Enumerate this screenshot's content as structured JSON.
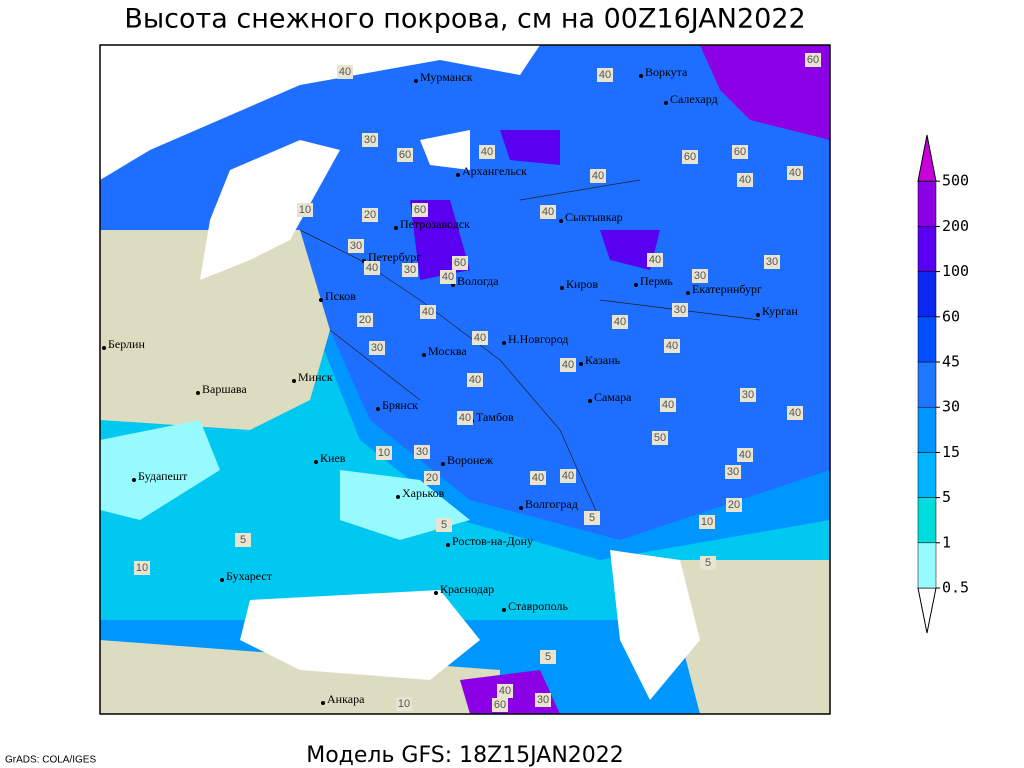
{
  "title": "Высота снежного покрова, см на 00Z16JAN2022",
  "footer": {
    "model": "Модель GFS: 18Z15JAN2022",
    "credit": "GrADS: COLA/IGES"
  },
  "legend": {
    "levels": [
      0.5,
      1,
      5,
      15,
      30,
      45,
      60,
      100,
      200,
      500
    ],
    "colors": [
      "#ffffff",
      "#96faff",
      "#00dcdc",
      "#00b4ff",
      "#0096ff",
      "#1e78ff",
      "#0050ff",
      "#0a28f0",
      "#5a00f0",
      "#8c00e6",
      "#c800dc"
    ]
  },
  "cities": [
    "Мурманск",
    "Воркута",
    "Салехард",
    "Архангельск",
    "Сыктывкар",
    "Петрозаводск",
    "Петербург",
    "Вологда",
    "Киров",
    "Пермь",
    "Екатеринбург",
    "Курган",
    "Псков",
    "Н.Новгород",
    "Казань",
    "Москва",
    "Берлин",
    "Варшава",
    "Минск",
    "Брянск",
    "Тамбов",
    "Самара",
    "Киев",
    "Воронеж",
    "Харьков",
    "Волгоград",
    "Будапешт",
    "Бухарест",
    "Ростов-на-Дону",
    "Краснодар",
    "Ставрополь",
    "Анкара"
  ],
  "contour_labels": [
    40,
    60,
    40,
    30,
    60,
    40,
    10,
    20,
    60,
    40,
    60,
    60,
    40,
    40,
    40,
    30,
    40,
    30,
    60,
    40,
    40,
    30,
    30,
    30,
    20,
    40,
    30,
    40,
    40,
    40,
    40,
    40,
    40,
    30,
    40,
    40,
    50,
    30,
    10,
    20,
    40,
    40,
    40,
    30,
    20,
    10,
    5,
    5,
    5,
    10,
    5,
    5,
    40,
    60,
    30,
    10
  ]
}
